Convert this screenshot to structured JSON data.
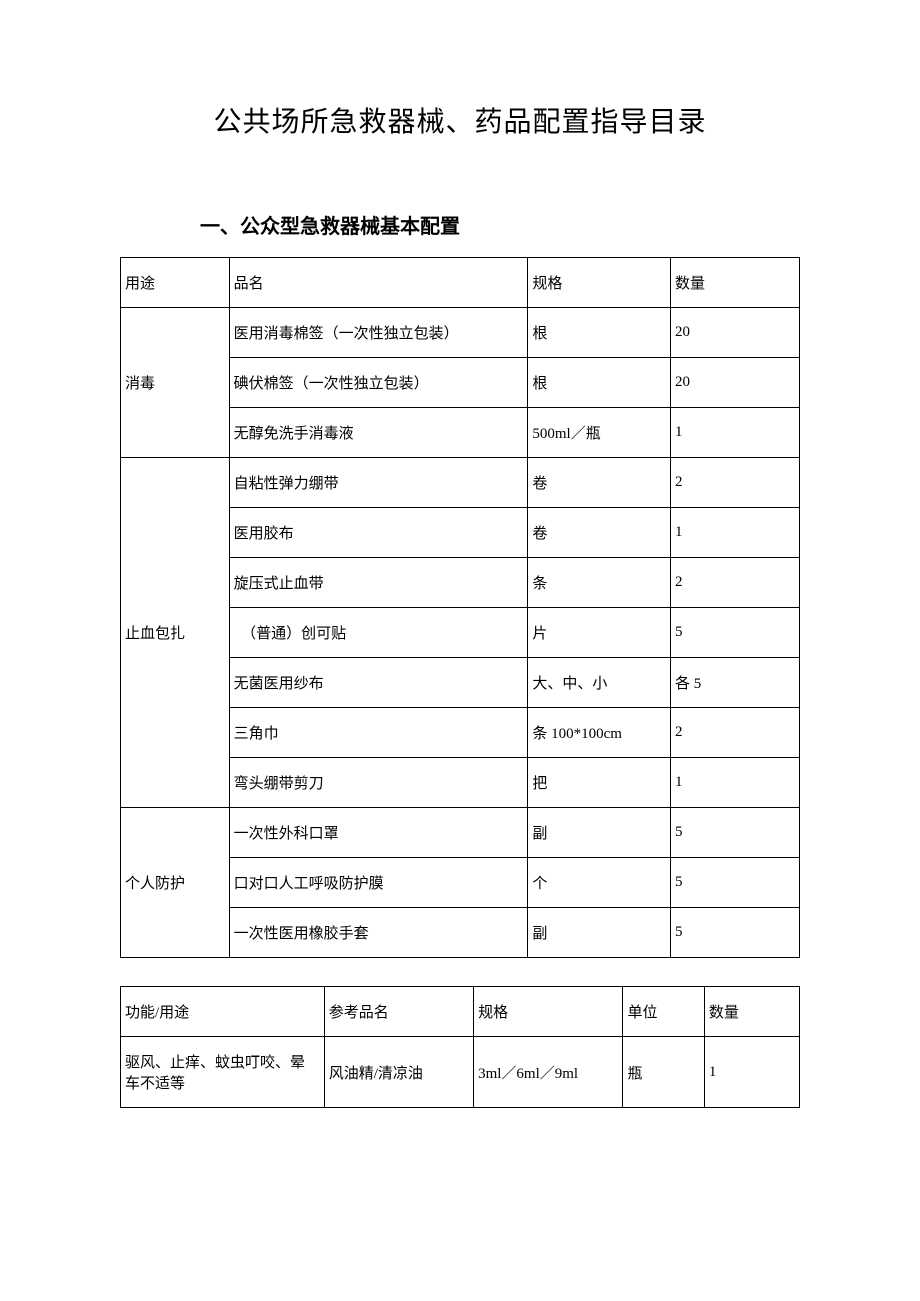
{
  "title": "公共场所急救器械、药品配置指导目录",
  "section1_title": "一、公众型急救器械基本配置",
  "table1": {
    "headers": {
      "use": "用途",
      "name": "品名",
      "spec": "规格",
      "qty": "数量"
    },
    "groups": [
      {
        "use": "消毒",
        "rows": [
          {
            "name": "医用消毒棉签（一次性独立包装）",
            "spec": "根",
            "qty": "20"
          },
          {
            "name": "碘伏棉签（一次性独立包装）",
            "spec": "根",
            "qty": "20"
          },
          {
            "name": "无醇免洗手消毒液",
            "spec": "500ml／瓶",
            "qty": "1"
          }
        ]
      },
      {
        "use": "止血包扎",
        "rows": [
          {
            "name": "自粘性弹力绷带",
            "spec": "卷",
            "qty": "2"
          },
          {
            "name": "医用胶布",
            "spec": "卷",
            "qty": "1"
          },
          {
            "name": "旋压式止血带",
            "spec": "条",
            "qty": "2"
          },
          {
            "name": "　（普通）创可贴",
            "spec": "片",
            "qty": "5"
          },
          {
            "name": "无菌医用纱布",
            "spec": "大、中、小",
            "qty": "各 5"
          },
          {
            "name": "三角巾",
            "spec": "条 100*100cm",
            "qty": "2"
          },
          {
            "name": "弯头绷带剪刀",
            "spec": "把",
            "qty": "1"
          }
        ]
      },
      {
        "use": "个人防护",
        "rows": [
          {
            "name": "一次性外科口罩",
            "spec": "副",
            "qty": "5"
          },
          {
            "name": "口对口人工呼吸防护膜",
            "spec": "个",
            "qty": "5"
          },
          {
            "name": "一次性医用橡胶手套",
            "spec": "副",
            "qty": "5"
          }
        ]
      }
    ]
  },
  "table2": {
    "headers": {
      "func": "功能/用途",
      "ref": "参考品名",
      "spec": "规格",
      "unit": "单位",
      "qty": "数量"
    },
    "rows": [
      {
        "func": "驱风、止痒、蚊虫叮咬、晕车不适等",
        "ref": "风油精/清凉油",
        "spec": "3ml／6ml／9ml",
        "unit": "瓶",
        "qty": "1"
      }
    ]
  },
  "colors": {
    "text": "#000000",
    "border": "#000000",
    "background": "#ffffff"
  }
}
